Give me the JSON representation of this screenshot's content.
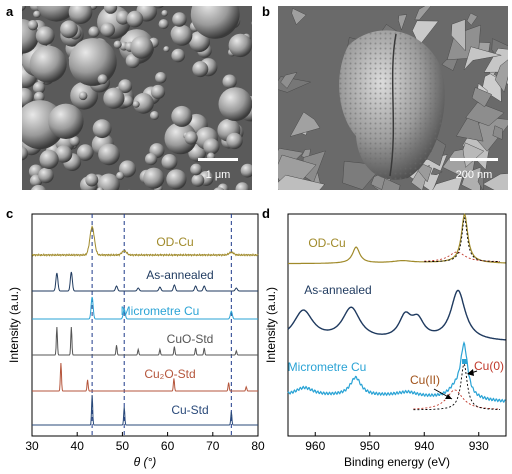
{
  "panels": {
    "a": {
      "letter": "a",
      "scale_bar": "1 μm"
    },
    "b": {
      "letter": "b",
      "scale_bar": "200 nm"
    },
    "c": {
      "letter": "c"
    },
    "d": {
      "letter": "d"
    }
  },
  "chart_data": [
    {
      "panel": "c",
      "type": "line",
      "xlabel": "θ (°)",
      "ylabel": "Intensity (a.u.)",
      "xlim": [
        30,
        80
      ],
      "xticks": [
        30,
        40,
        50,
        60,
        70,
        80
      ],
      "reference_lines_x": [
        43.3,
        50.4,
        74.1
      ],
      "series": [
        {
          "name": "OD-Cu",
          "color": "#a08a2a",
          "peaks": [
            [
              43.3,
              1.0
            ],
            [
              50.4,
              0.15
            ],
            [
              74.1,
              0.1
            ]
          ]
        },
        {
          "name": "As-annealed",
          "color": "#1f3a5f",
          "peaks": [
            [
              35.5,
              0.9
            ],
            [
              38.7,
              0.95
            ],
            [
              48.7,
              0.25
            ],
            [
              53.5,
              0.15
            ],
            [
              58.3,
              0.2
            ],
            [
              61.5,
              0.3
            ],
            [
              66.2,
              0.25
            ],
            [
              68.1,
              0.25
            ],
            [
              75.2,
              0.15
            ]
          ]
        },
        {
          "name": "Micrometre Cu",
          "color": "#2aa3d5",
          "peaks": [
            [
              43.3,
              1.0
            ],
            [
              50.4,
              0.45
            ],
            [
              74.1,
              0.35
            ]
          ]
        },
        {
          "name": "CuO-Std",
          "color": "#555555",
          "peaks": [
            [
              35.5,
              1.0
            ],
            [
              38.7,
              1.0
            ],
            [
              48.7,
              0.35
            ],
            [
              53.5,
              0.2
            ],
            [
              58.3,
              0.2
            ],
            [
              61.5,
              0.3
            ],
            [
              66.2,
              0.25
            ],
            [
              68.1,
              0.25
            ],
            [
              75.2,
              0.15
            ]
          ]
        },
        {
          "name": "Cu₂O-Std",
          "color": "#b5563c",
          "peaks": [
            [
              36.4,
              1.0
            ],
            [
              42.3,
              0.4
            ],
            [
              61.4,
              0.45
            ],
            [
              73.5,
              0.3
            ],
            [
              77.4,
              0.15
            ]
          ]
        },
        {
          "name": "Cu-Std",
          "color": "#2a4a7a",
          "peaks": [
            [
              43.3,
              1.0
            ],
            [
              50.4,
              0.6
            ],
            [
              74.1,
              0.45
            ]
          ]
        }
      ]
    },
    {
      "panel": "d",
      "type": "line",
      "xlabel": "Binding energy (eV)",
      "ylabel": "Intensity (a.u.)",
      "xlim": [
        965,
        925
      ],
      "xticks": [
        960,
        950,
        940,
        930
      ],
      "series": [
        {
          "name": "OD-Cu",
          "color": "#a08a2a"
        },
        {
          "name": "As-annealed",
          "color": "#1f3a5f"
        },
        {
          "name": "Micrometre Cu",
          "color": "#2aa3d5"
        }
      ],
      "annotations": [
        {
          "text": "Cu(II)",
          "color": "#a0521a"
        },
        {
          "text": "Cu(0)",
          "color": "#c0392b"
        }
      ]
    }
  ]
}
